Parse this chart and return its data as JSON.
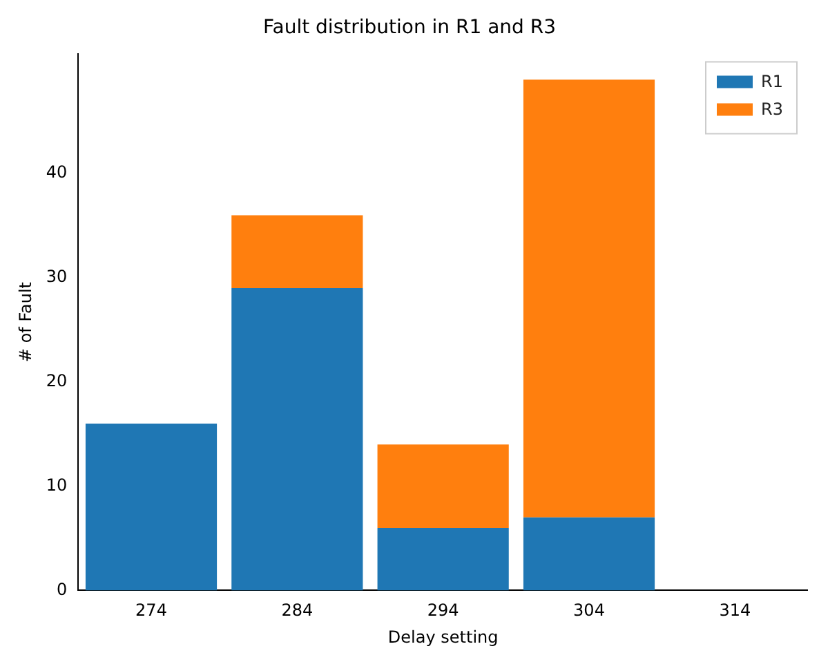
{
  "chart_data": {
    "type": "bar",
    "title": "Fault distribution in R1 and R3",
    "xlabel": "Delay setting",
    "ylabel": "# of Fault",
    "categories": [
      "274",
      "284",
      "294",
      "304",
      "314"
    ],
    "series": [
      {
        "name": "R1",
        "color": "#1f77b4",
        "values": [
          16,
          29,
          6,
          7,
          0
        ]
      },
      {
        "name": "R3",
        "color": "#ff7f0e",
        "values": [
          0,
          7,
          8,
          42,
          0
        ]
      }
    ],
    "stacked": true,
    "ylim": [
      0,
      51.5
    ],
    "yticks": [
      0,
      10,
      20,
      30,
      40
    ],
    "grid": false,
    "legend": "top right"
  }
}
